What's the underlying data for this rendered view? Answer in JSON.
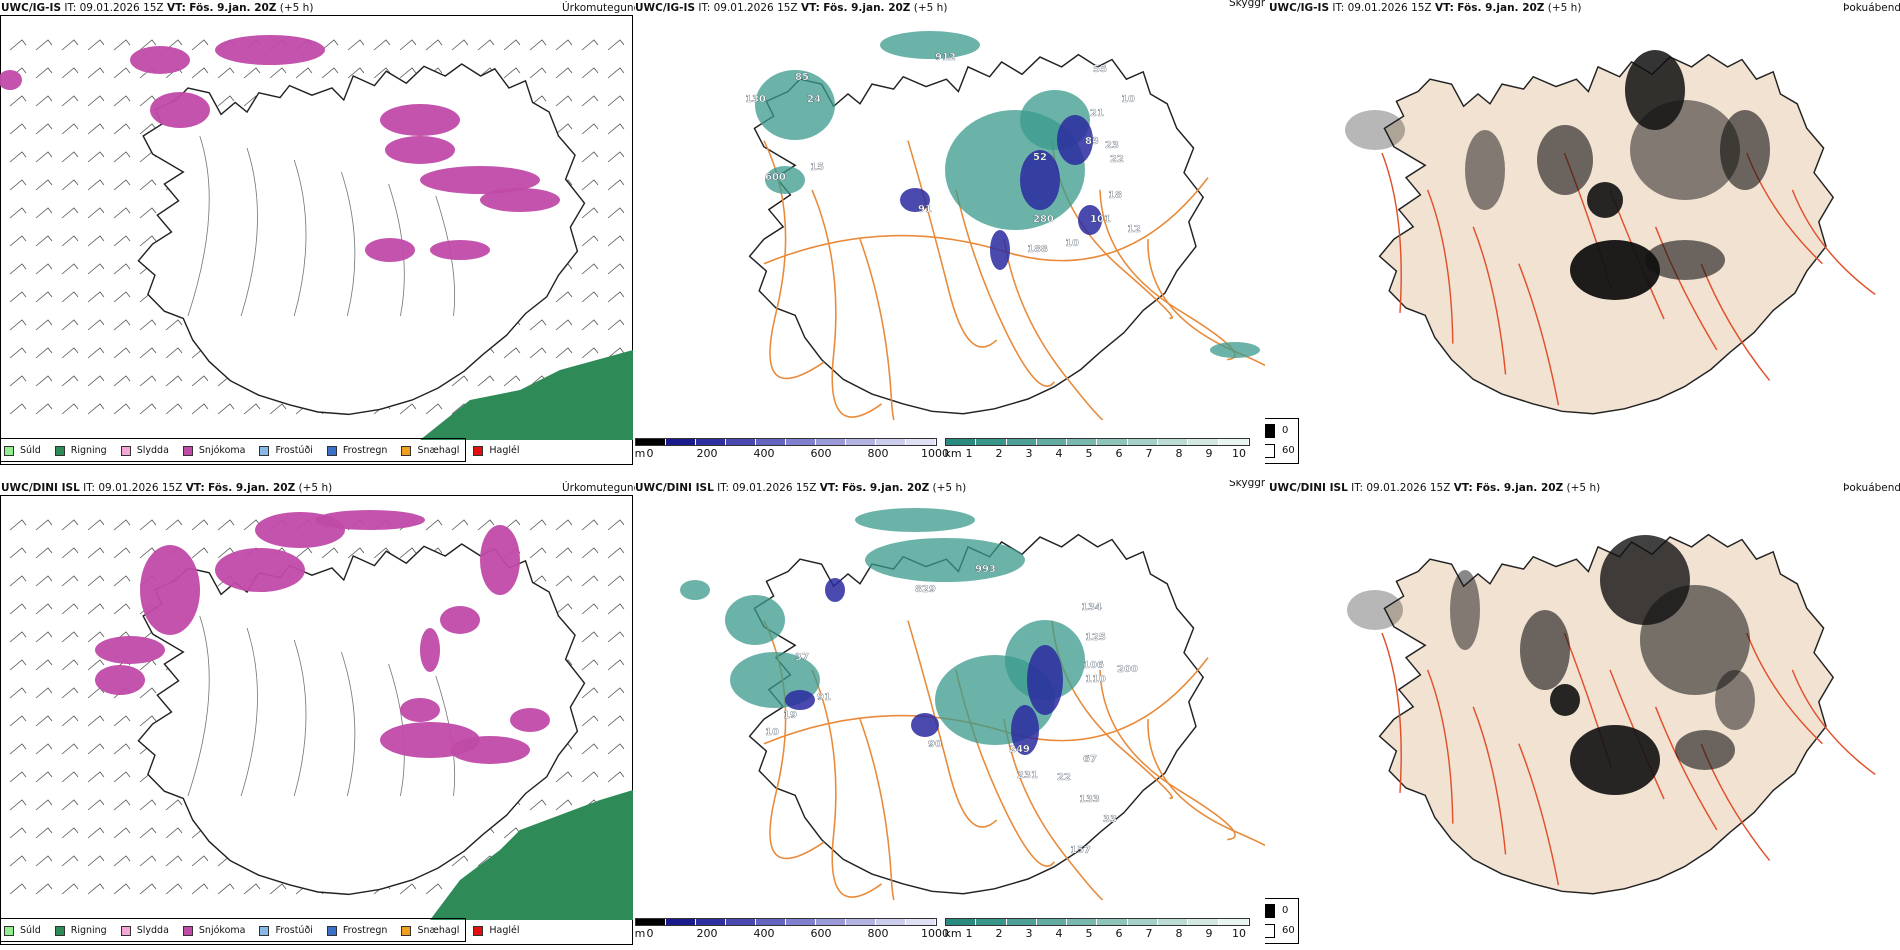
{
  "rows": [
    {
      "model": "UWC/IG-IS",
      "precip_header": {
        "it_label": "IT:",
        "it_value": "09.01.2026 15Z",
        "vt_label": "VT:",
        "vt_value": "Fös. 9.jan. 20Z",
        "lead": "(+5 h)"
      },
      "precip_field": "Úrkomutegund",
      "vis_header": {
        "it_label": "IT:",
        "it_value": "09.01.2026 15Z",
        "vt_label": "VT:",
        "vt_value": "Fös. 9.jan. 20Z",
        "lead": "(+5 h)"
      },
      "vis_field": "Skyggni",
      "cloud_header": {
        "it_label": "IT:",
        "it_value": "09.01.2026 15Z",
        "vt_label": "VT:",
        "vt_value": "Fös. 9.jan. 20Z",
        "lead": "(+5 h)"
      },
      "cloud_field": "Þokuábendi",
      "vis_labels": [
        "912",
        "85",
        "130",
        "24",
        "600",
        "15",
        "91",
        "280",
        "188",
        "10",
        "52",
        "83",
        "23",
        "21",
        "22",
        "18",
        "101",
        "55",
        "10",
        "12"
      ]
    },
    {
      "model": "UWC/DINI ISL",
      "precip_header": {
        "it_label": "IT:",
        "it_value": "09.01.2026 15Z",
        "vt_label": "VT:",
        "vt_value": "Fös. 9.jan. 20Z",
        "lead": "(+5 h)"
      },
      "precip_field": "Úrkomutegund",
      "vis_header": {
        "it_label": "IT:",
        "it_value": "09.01.2026 15Z",
        "vt_label": "VT:",
        "vt_value": "Fös. 9.jan. 20Z",
        "lead": "(+5 h)"
      },
      "vis_field": "Skyggni",
      "cloud_header": {
        "it_label": "IT:",
        "it_value": "09.01.2026 15Z",
        "vt_label": "VT:",
        "vt_value": "Fös. 9.jan. 20Z",
        "lead": "(+5 h)"
      },
      "cloud_field": "Þokuábendi",
      "vis_labels": [
        "993",
        "829",
        "37",
        "91",
        "19",
        "10",
        "134",
        "125",
        "106",
        "110",
        "90",
        "249",
        "231",
        "22",
        "200",
        "133",
        "33",
        "157",
        "67"
      ]
    }
  ],
  "precip_legend": [
    {
      "label": "Súld",
      "color": "#90ee90"
    },
    {
      "label": "Rigning",
      "color": "#2e8b57"
    },
    {
      "label": "Slydda",
      "color": "#f4a6d7"
    },
    {
      "label": "Snjókoma",
      "color": "#c04aa8"
    },
    {
      "label": "Frostúði",
      "color": "#87b8e8"
    },
    {
      "label": "Frostregn",
      "color": "#3a70c8"
    },
    {
      "label": "Snæhagl",
      "color": "#f0a020"
    },
    {
      "label": "Haglél",
      "color": "#e01010"
    }
  ],
  "ceiling_bar": {
    "unit": "m",
    "ticks": [
      "0",
      "200",
      "400",
      "600",
      "800",
      "1000"
    ],
    "colors": [
      "#000000",
      "#1a1a8c",
      "#2e2ea0",
      "#4848b0",
      "#6464c0",
      "#8080cc",
      "#9a9ad8",
      "#b4b4e2",
      "#ccccec",
      "#e0e0f4"
    ]
  },
  "visibility_bar": {
    "unit": "km",
    "ticks": [
      "1",
      "2",
      "3",
      "4",
      "5",
      "6",
      "7",
      "8",
      "9",
      "10"
    ],
    "colors": [
      "#2a8a80",
      "#3a958b",
      "#4ea096",
      "#62aca2",
      "#78b8ae",
      "#8ec4ba",
      "#a4d0c8",
      "#bcdcd4",
      "#d4e8e2",
      "#eaf4f0"
    ]
  },
  "cloud_legend": [
    {
      "label": "0",
      "color": "#000000"
    },
    {
      "label": "60",
      "color": "#ffffff"
    }
  ],
  "colors": {
    "snow": "#c04aa8",
    "rain": "#2e8b57",
    "teal": "#3a9a8c",
    "ceiling": "#2a2aa0",
    "roads": "#e88a3a",
    "land": "#f2e2d2",
    "red_roads": "#e0502a"
  }
}
